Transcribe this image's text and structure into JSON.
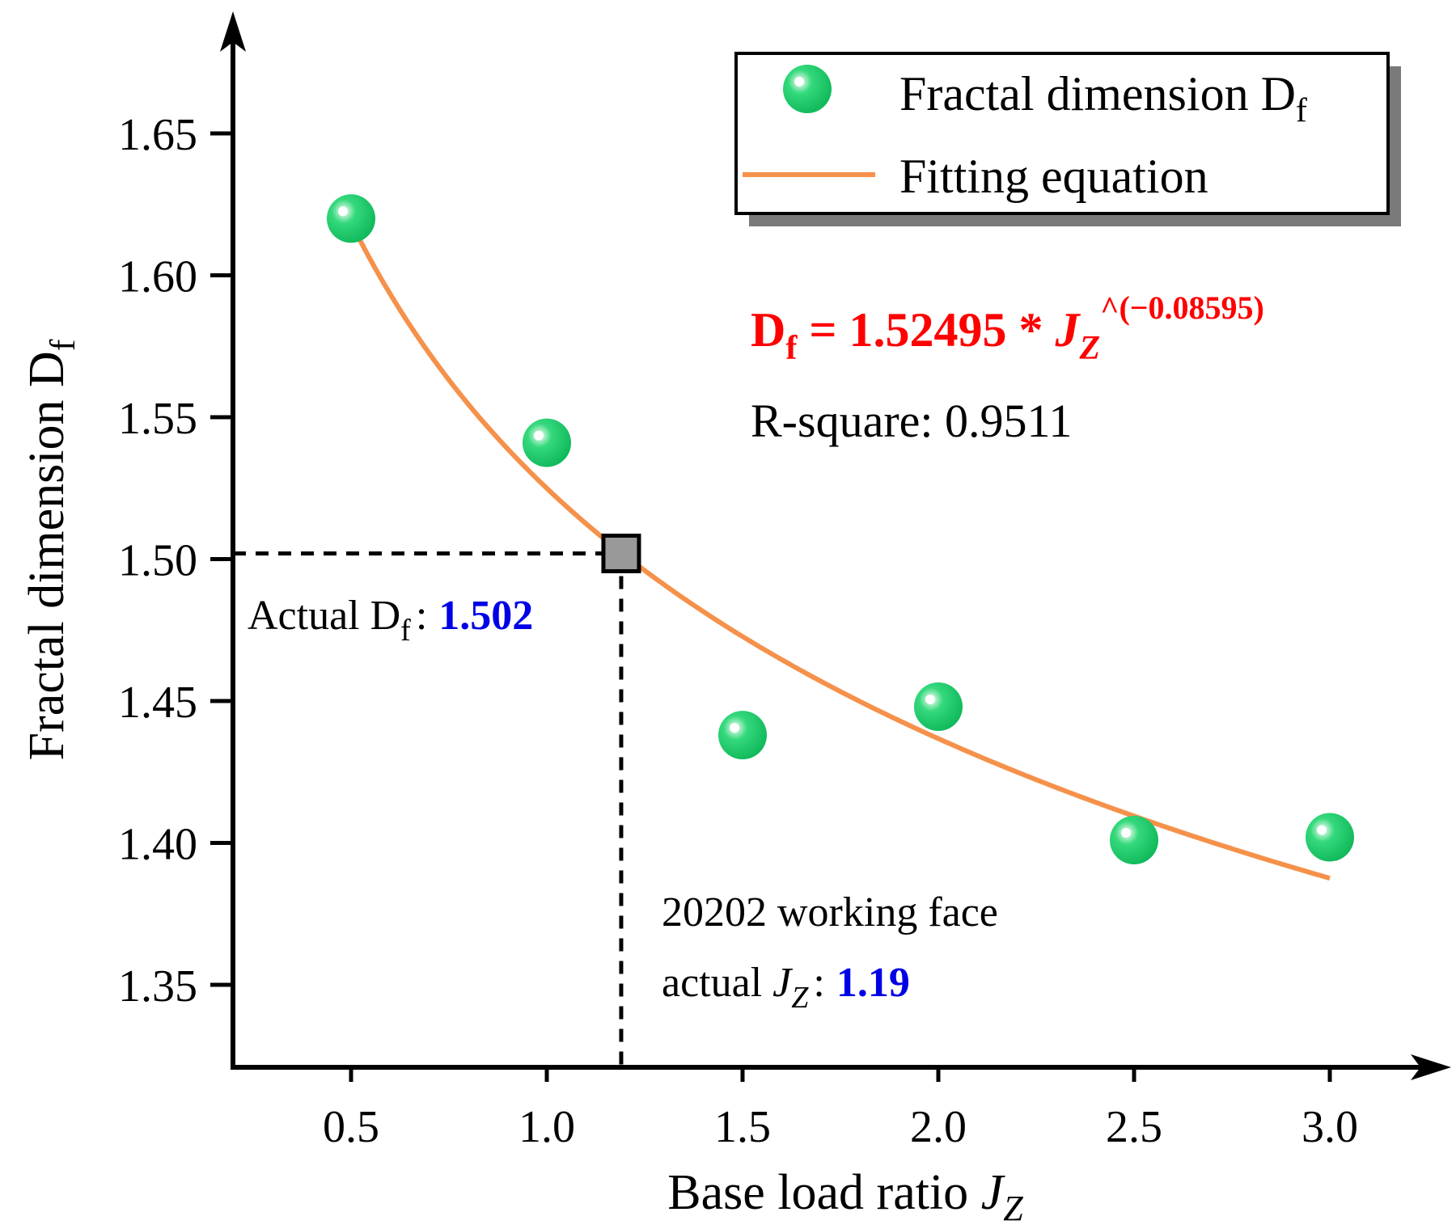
{
  "chart_data": {
    "type": "scatter",
    "xlabel": "Base load ratio",
    "xlabel_var": "J",
    "xlabel_var_sub": "Z",
    "ylabel": "Fractal dimension D",
    "ylabel_sub": "f",
    "xlim": [
      0.2,
      3.3
    ],
    "ylim": [
      1.32,
      1.68
    ],
    "x_ticks": [
      0.5,
      1.0,
      1.5,
      2.0,
      2.5,
      3.0
    ],
    "x_tick_labels": [
      "0.5",
      "1.0",
      "1.5",
      "2.0",
      "2.5",
      "3.0"
    ],
    "y_ticks": [
      1.35,
      1.4,
      1.45,
      1.5,
      1.55,
      1.6,
      1.65
    ],
    "y_tick_labels": [
      "1.35",
      "1.40",
      "1.45",
      "1.50",
      "1.55",
      "1.60",
      "1.65"
    ],
    "series": [
      {
        "name": "Fractal dimension D",
        "name_sub": "f",
        "kind": "scatter",
        "color": "#1fcf6e",
        "x": [
          0.5,
          1.0,
          1.5,
          2.0,
          2.5,
          3.0
        ],
        "y": [
          1.62,
          1.541,
          1.438,
          1.448,
          1.401,
          1.402
        ]
      },
      {
        "name": "Fitting equation",
        "kind": "line",
        "color": "#f5914a",
        "coef": 1.52495,
        "exponent": -0.08595,
        "x_range": [
          0.5,
          3.0
        ]
      }
    ],
    "equation": {
      "lhs": "D",
      "lhs_sub": "f",
      "middle": " = 1.52495 * ",
      "var": "J",
      "var_sub": "Z",
      "power": "^(−0.08595)",
      "color": "#ff0000"
    },
    "r_square_text": "R-square: 0.9511",
    "highlight_point": {
      "x": 1.19,
      "y": 1.502,
      "color": "#999999"
    },
    "annotations": {
      "actual_df_prefix": "Actual D",
      "actual_df_sub": "f",
      "actual_df_colon": ":",
      "actual_df_value": "1.502",
      "working_face_line1": "20202 working face",
      "working_face_prefix": "actual ",
      "working_face_var": "J",
      "working_face_var_sub": "Z",
      "working_face_colon": ":",
      "working_face_value": "1.19",
      "value_color": "#0000e6"
    },
    "legend": {
      "position": "top-right",
      "shadow": true
    }
  }
}
